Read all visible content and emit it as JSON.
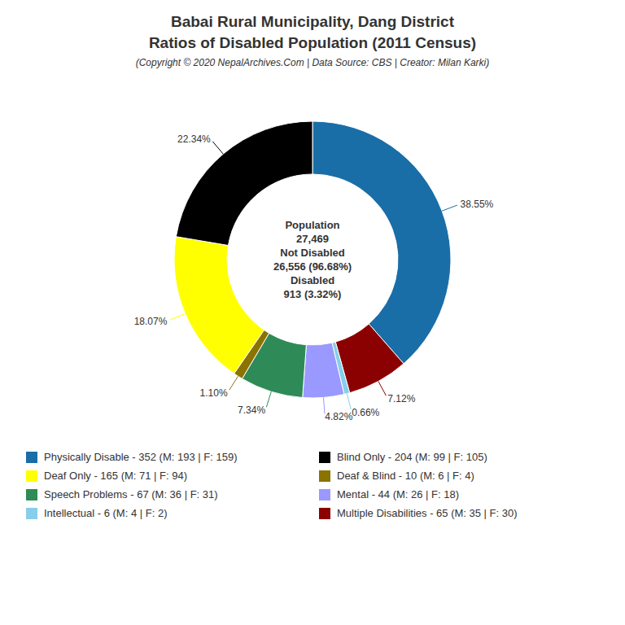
{
  "chart_data": {
    "type": "pie",
    "title": "Babai Rural Municipality, Dang District\nRatios of Disabled Population (2011 Census)",
    "subtitle": "(Copyright © 2020 NepalArchives.Com | Data Source: CBS | Creator: Milan Karki)",
    "annotations": [
      "Population",
      "27,469",
      "Not Disabled",
      "26,556 (96.68%)",
      "Disabled",
      "913 (3.32%)"
    ],
    "categories": [
      "Physically Disable - 352 (M: 193 | F: 159)",
      "Multiple Disabilities - 65 (M: 35 | F: 30)",
      "Intellectual - 6 (M: 4 | F: 2)",
      "Mental - 44 (M: 26 | F: 18)",
      "Speech Problems - 67 (M: 36 | F: 31)",
      "Deaf & Blind - 10 (M: 6 | F: 4)",
      "Deaf Only - 165 (M: 71 | F: 94)",
      "Blind Only - 204 (M: 99 | F: 105)"
    ],
    "values": [
      38.55,
      7.12,
      0.66,
      4.82,
      7.34,
      1.1,
      18.07,
      22.34
    ],
    "value_labels": [
      "38.55%",
      "7.12%",
      "0.66%",
      "4.82%",
      "7.34%",
      "1.10%",
      "18.07%",
      "22.34%"
    ],
    "colors": [
      "#1a6ea8",
      "#8b0000",
      "#87ceeb",
      "#9999ff",
      "#2e8b57",
      "#8b7300",
      "#ffff00",
      "#000000"
    ],
    "data_labels": true,
    "legend": "bottom"
  }
}
